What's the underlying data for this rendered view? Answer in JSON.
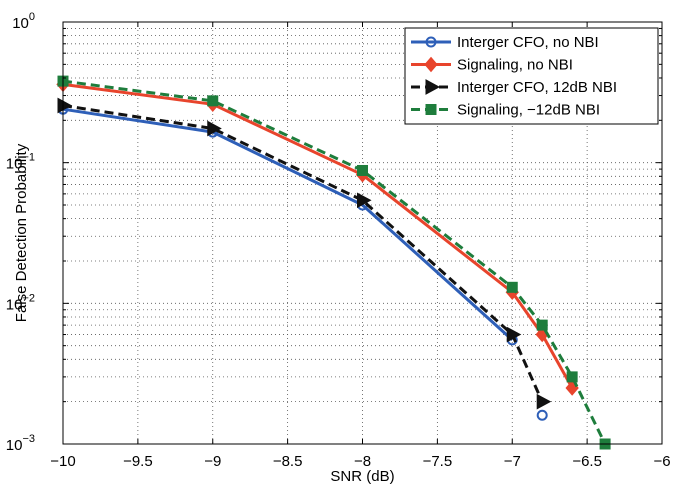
{
  "chart_data": {
    "type": "line",
    "title": "",
    "xlabel": "SNR (dB)",
    "ylabel": "False Detection Probability",
    "xlim": [
      -10,
      -6
    ],
    "ylim": [
      0.001,
      1
    ],
    "yscale": "log",
    "grid": true,
    "legend_position": "top-right",
    "x_ticks": [
      {
        "value": -10,
        "label": "−10"
      },
      {
        "value": -9.5,
        "label": "−9.5"
      },
      {
        "value": -9,
        "label": "−9"
      },
      {
        "value": -8.5,
        "label": "−8.5"
      },
      {
        "value": -8,
        "label": "−8"
      },
      {
        "value": -7.5,
        "label": "−7.5"
      },
      {
        "value": -7,
        "label": "−7"
      },
      {
        "value": -6.5,
        "label": "−6.5"
      },
      {
        "value": -6,
        "label": "−6"
      }
    ],
    "y_ticks": [
      {
        "value": 0.001,
        "base": "10",
        "exp": "−3"
      },
      {
        "value": 0.01,
        "base": "10",
        "exp": "−2"
      },
      {
        "value": 0.1,
        "base": "10",
        "exp": "−1"
      },
      {
        "value": 1,
        "base": "10",
        "exp": "0"
      }
    ],
    "series": [
      {
        "name": "Interger CFO, no NBI",
        "color": "#2e5fb8",
        "dash": "solid",
        "marker": "circle",
        "x": [
          -10,
          -9,
          -8,
          -7,
          -6.8
        ],
        "y": [
          0.24,
          0.165,
          0.05,
          0.0055,
          0.0016
        ],
        "last_point_unconnected": true
      },
      {
        "name": "Signaling, no NBI",
        "color": "#e8442c",
        "dash": "solid",
        "marker": "diamond",
        "x": [
          -10,
          -9,
          -8,
          -7,
          -6.8,
          -6.6
        ],
        "y": [
          0.36,
          0.26,
          0.082,
          0.012,
          0.006,
          0.0025
        ]
      },
      {
        "name": "Interger CFO, 12dB NBI",
        "color": "#111111",
        "dash": "dashed",
        "marker": "triangle-right",
        "x": [
          -10,
          -9,
          -8,
          -7,
          -6.8
        ],
        "y": [
          0.255,
          0.175,
          0.054,
          0.006,
          0.002
        ]
      },
      {
        "name": "Signaling, −12dB NBI",
        "color": "#1e7d3c",
        "dash": "dashed",
        "marker": "square",
        "x": [
          -10,
          -9,
          -8,
          -7,
          -6.8,
          -6.6,
          -6.38
        ],
        "y": [
          0.38,
          0.275,
          0.088,
          0.013,
          0.007,
          0.003,
          0.001
        ]
      }
    ]
  }
}
